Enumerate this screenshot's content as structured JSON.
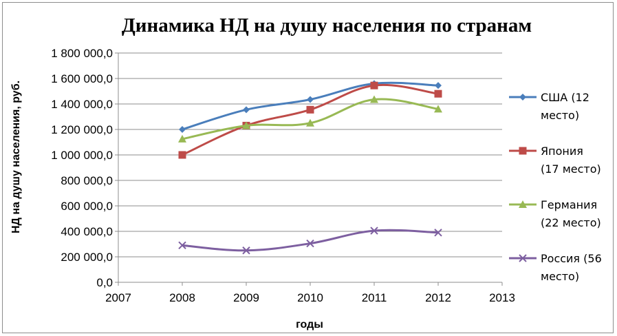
{
  "chart_data": {
    "type": "line",
    "title": "Динамика НД на душу населения по странам",
    "xlabel": "годы",
    "ylabel": "НД на душу населения, руб.",
    "xlim": [
      2007,
      2013
    ],
    "ylim": [
      0,
      1800000
    ],
    "x_ticks": [
      "2007",
      "2008",
      "2009",
      "2010",
      "2011",
      "2012",
      "2013"
    ],
    "y_ticks": [
      "0,0",
      "200 000,0",
      "400 000,0",
      "600 000,0",
      "800 000,0",
      "1 000 000,0",
      "1 200 000,0",
      "1 400 000,0",
      "1 600 000,0",
      "1 800 000,0"
    ],
    "grid": "horizontal",
    "legend_position": "right",
    "x": [
      2008,
      2009,
      2010,
      2011,
      2012
    ],
    "series": [
      {
        "name": "США (12 место)",
        "legend_lines": [
          "США (12",
          "место)"
        ],
        "color": "#4a7ebb",
        "marker": "diamond",
        "values": [
          1200000,
          1355000,
          1435000,
          1560000,
          1545000
        ]
      },
      {
        "name": "Япония (17 место)",
        "legend_lines": [
          "Япония",
          "(17 место)"
        ],
        "color": "#be4b48",
        "marker": "square",
        "values": [
          1000000,
          1230000,
          1355000,
          1545000,
          1480000
        ]
      },
      {
        "name": "Германия (22 место)",
        "legend_lines": [
          "Германия",
          "(22 место)"
        ],
        "color": "#98b954",
        "marker": "triangle",
        "values": [
          1125000,
          1230000,
          1250000,
          1435000,
          1360000
        ]
      },
      {
        "name": "Россия (56 место)",
        "legend_lines": [
          "Россия (56",
          "место)"
        ],
        "color": "#7d5fa0",
        "marker": "x",
        "values": [
          290000,
          250000,
          305000,
          405000,
          390000
        ]
      }
    ]
  }
}
